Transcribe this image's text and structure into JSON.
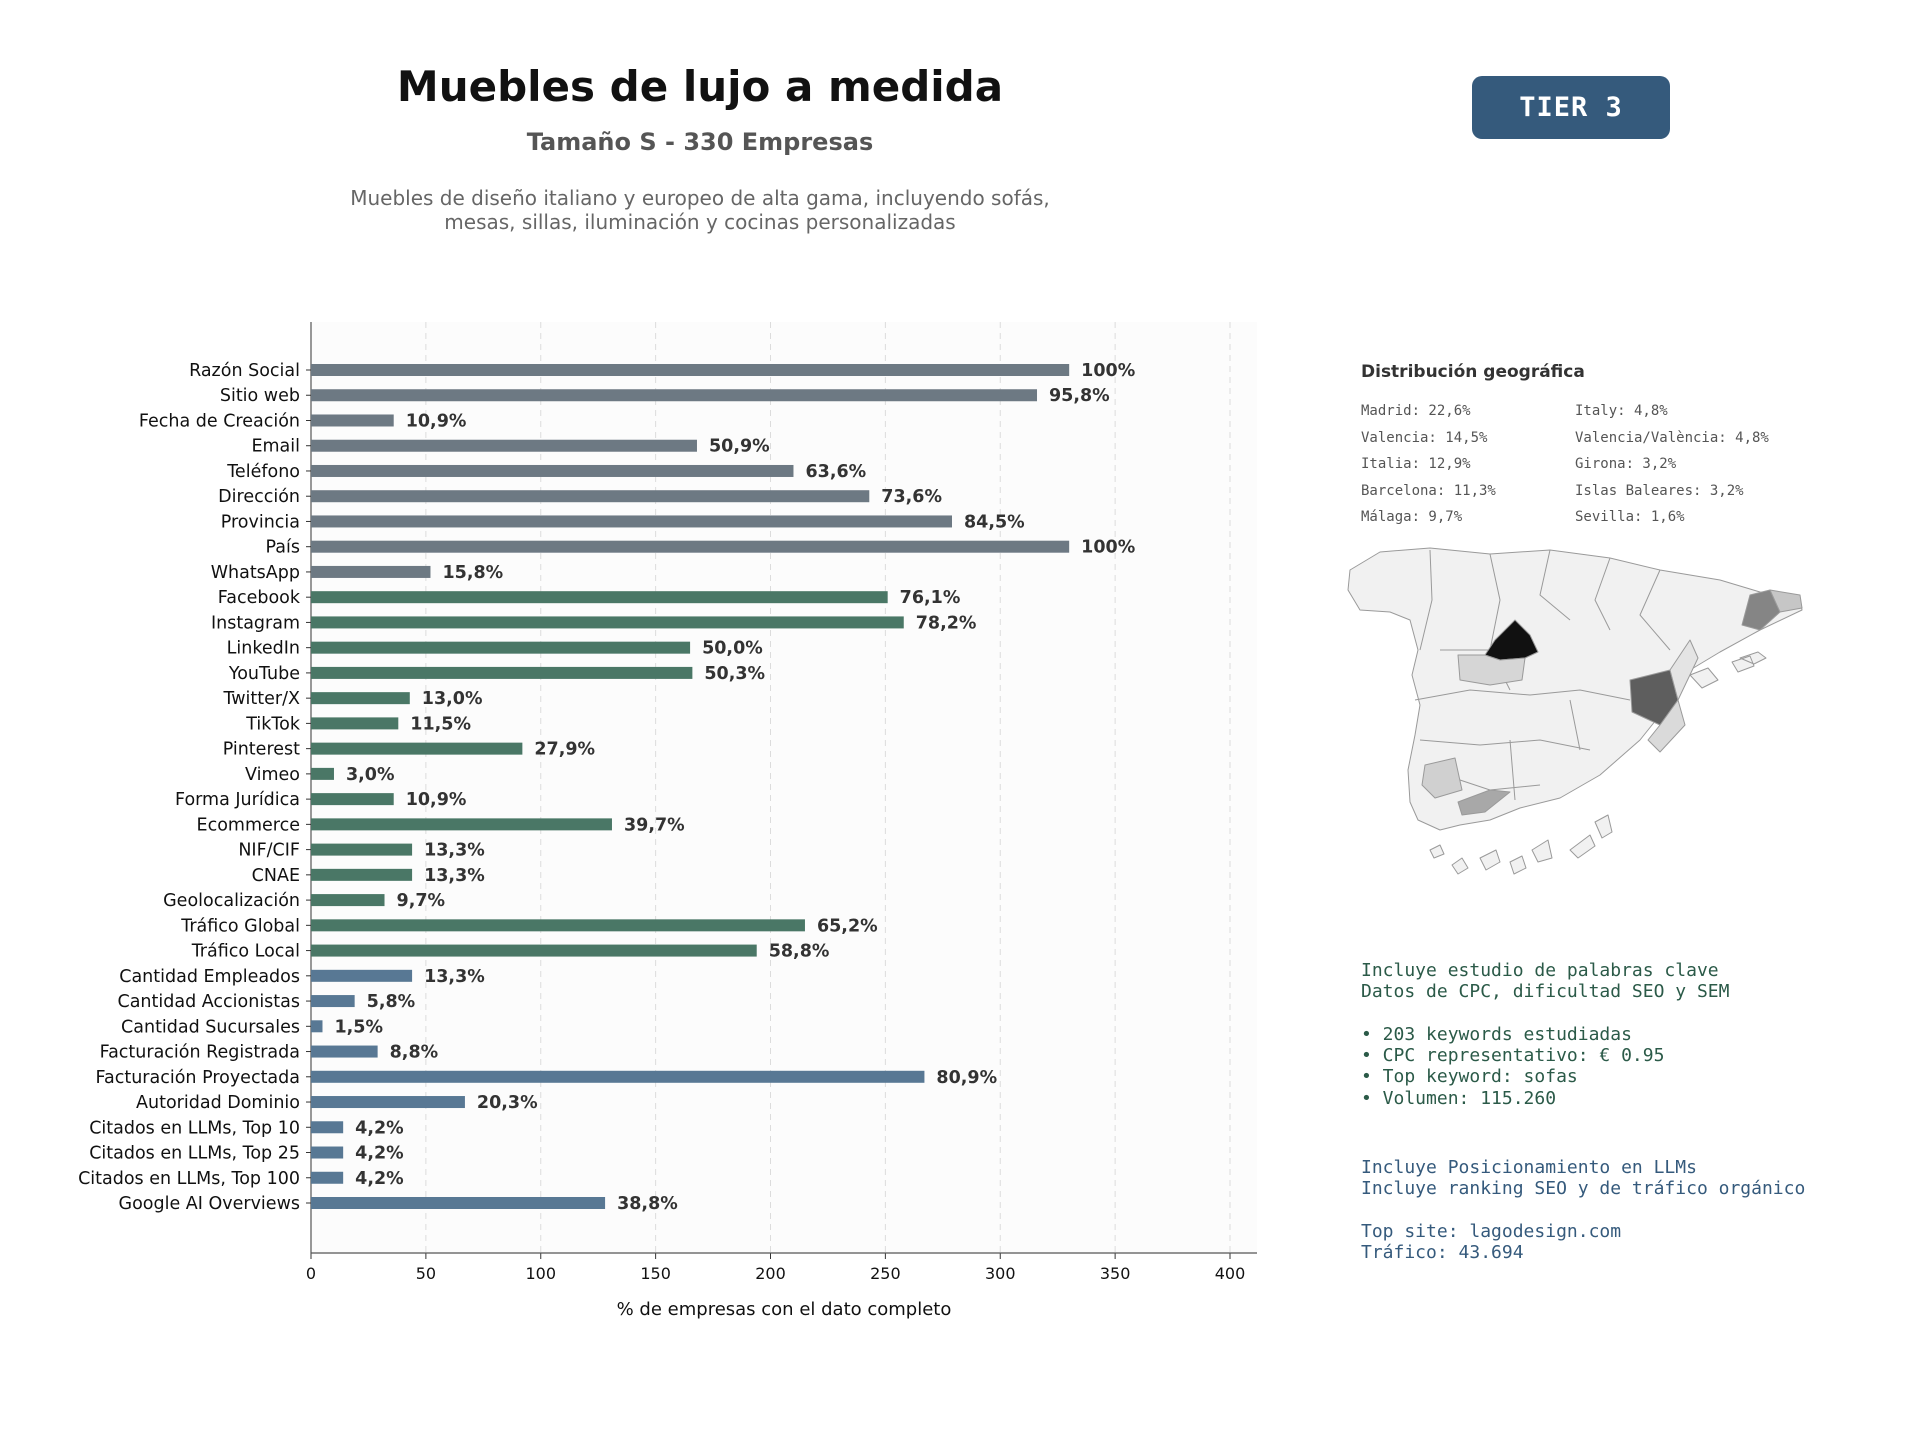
{
  "header": {
    "title": "Muebles de lujo a medida",
    "subtitle": "Tamaño S - 330 Empresas",
    "description_lines": [
      "Muebles de diseño italiano y europeo de alta gama, incluyendo sofás,",
      "mesas, sillas, iluminación y cocinas personalizadas"
    ],
    "tier_label": "TIER 3"
  },
  "chart_data": {
    "type": "bar",
    "orientation": "horizontal",
    "xlabel": "% de empresas con el dato completo",
    "xlim": [
      0,
      412
    ],
    "xticks": [
      0,
      50,
      100,
      150,
      200,
      250,
      300,
      350,
      400
    ],
    "grid": "vertical dashed",
    "colors": {
      "basic": "#6d7983",
      "digital": "#4a7766",
      "business": "#587894"
    },
    "categories": [
      "Razón Social",
      "Sitio web",
      "Fecha de Creación",
      "Email",
      "Teléfono",
      "Dirección",
      "Provincia",
      "País",
      "WhatsApp",
      "Facebook",
      "Instagram",
      "LinkedIn",
      "YouTube",
      "Twitter/X",
      "TikTok",
      "Pinterest",
      "Vimeo",
      "Forma Jurídica",
      "Ecommerce",
      "NIF/CIF",
      "CNAE",
      "Geolocalización",
      "Tráfico Global",
      "Tráfico Local",
      "Cantidad Empleados",
      "Cantidad Accionistas",
      "Cantidad Sucursales",
      "Facturación Registrada",
      "Facturación Proyectada",
      "Autoridad Dominio",
      "Citados en LLMs, Top 10",
      "Citados en LLMs, Top 25",
      "Citados en LLMs, Top 100",
      "Google AI Overviews"
    ],
    "values": [
      330,
      316,
      36,
      168,
      210,
      243,
      279,
      330,
      52,
      251,
      258,
      165,
      166,
      43,
      38,
      92,
      10,
      36,
      131,
      44,
      44,
      32,
      215,
      194,
      44,
      19,
      5,
      29,
      267,
      67,
      14,
      14,
      14,
      128
    ],
    "labels": [
      "100%",
      "95,8%",
      "10,9%",
      "50,9%",
      "63,6%",
      "73,6%",
      "84,5%",
      "100%",
      "15,8%",
      "76,1%",
      "78,2%",
      "50,0%",
      "50,3%",
      "13,0%",
      "11,5%",
      "27,9%",
      "3,0%",
      "10,9%",
      "39,7%",
      "13,3%",
      "13,3%",
      "9,7%",
      "65,2%",
      "58,8%",
      "13,3%",
      "5,8%",
      "1,5%",
      "8,8%",
      "80,9%",
      "20,3%",
      "4,2%",
      "4,2%",
      "4,2%",
      "38,8%"
    ],
    "groups": [
      "basic",
      "basic",
      "basic",
      "basic",
      "basic",
      "basic",
      "basic",
      "basic",
      "basic",
      "digital",
      "digital",
      "digital",
      "digital",
      "digital",
      "digital",
      "digital",
      "digital",
      "digital",
      "digital",
      "digital",
      "digital",
      "digital",
      "digital",
      "digital",
      "business",
      "business",
      "business",
      "business",
      "business",
      "business",
      "business",
      "business",
      "business",
      "business"
    ]
  },
  "geo": {
    "title": "Distribución geográfica",
    "col1": [
      "Madrid: 22,6%",
      "Valencia: 14,5%",
      "Italia: 12,9%",
      "Barcelona: 11,3%",
      "Málaga: 9,7%"
    ],
    "col2": [
      "Italy: 4,8%",
      "Valencia/València: 4,8%",
      "Girona: 3,2%",
      "Islas Baleares: 3,2%",
      "Sevilla: 1,6%"
    ]
  },
  "seo_info": {
    "lines": [
      "Incluye estudio de palabras clave",
      "Datos de CPC, dificultad SEO y SEM",
      "",
      "• 203 keywords estudiadas",
      "• CPC representativo: € 0.95",
      "• Top keyword: sofas",
      "• Volumen: 115.260"
    ]
  },
  "llm_info": {
    "lines": [
      "Incluye Posicionamiento en LLMs",
      "Incluye ranking SEO y de tráfico orgánico",
      "",
      "Top site: lagodesign.com",
      "Tráfico: 43.694"
    ]
  }
}
